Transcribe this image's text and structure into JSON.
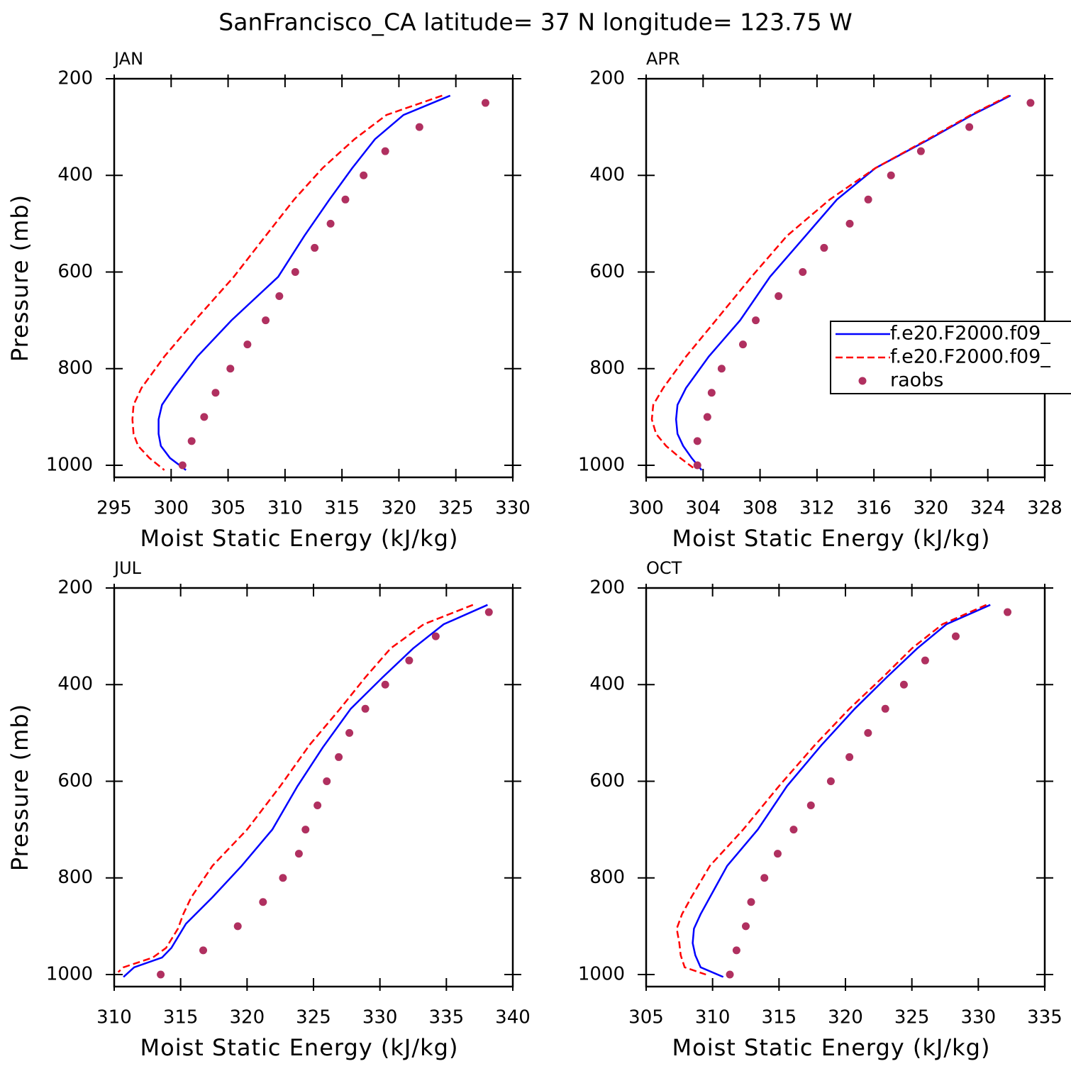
{
  "title": "SanFrancisco_CA  latitude= 37 N longitude= 123.75 W",
  "chart_data": [
    {
      "type": "line",
      "label": "JAN",
      "xlabel": "Moist Static Energy (kJ/kg)",
      "ylabel": "Pressure (mb)",
      "xlim": [
        295,
        330
      ],
      "xticks": [
        295,
        300,
        305,
        310,
        315,
        320,
        325,
        330
      ],
      "ylim": [
        1025,
        200
      ],
      "yticks": [
        200,
        400,
        600,
        800,
        1000
      ],
      "series": [
        {
          "name": "f.e20.F2000.f09_",
          "color": "#0000ff",
          "line_style": "solid",
          "x": [
            324.5,
            320.4,
            317.9,
            315.9,
            313.9,
            311.7,
            309.4,
            305.3,
            302.3,
            300.2,
            299.2,
            298.9,
            298.9,
            299.1,
            299.9,
            301.3
          ],
          "y": [
            235,
            275,
            325,
            385,
            450,
            525,
            610,
            700,
            775,
            840,
            875,
            905,
            935,
            960,
            985,
            1010
          ]
        },
        {
          "name": "f.e20.F2000.f09_",
          "color": "#ff0000",
          "line_style": "dashed",
          "x": [
            323.8,
            318.9,
            316.1,
            313.3,
            310.8,
            308.3,
            305.5,
            302.1,
            299.4,
            297.4,
            296.7,
            296.6,
            296.7,
            297.1,
            298.1,
            299.4
          ],
          "y": [
            235,
            275,
            325,
            385,
            450,
            525,
            610,
            700,
            775,
            840,
            875,
            905,
            935,
            960,
            985,
            1010
          ]
        },
        {
          "name": "raobs",
          "color": "#b03060",
          "line_style": "none",
          "x": [
            327.6,
            321.8,
            318.8,
            316.9,
            315.3,
            314.0,
            312.6,
            310.9,
            309.5,
            308.3,
            306.7,
            305.2,
            303.9,
            302.9,
            301.8,
            301.0
          ],
          "y": [
            250,
            300,
            350,
            400,
            450,
            500,
            550,
            600,
            650,
            700,
            750,
            800,
            850,
            900,
            950,
            1000
          ]
        }
      ]
    },
    {
      "type": "line",
      "label": "APR",
      "xlabel": "Moist Static Energy (kJ/kg)",
      "legend": "right",
      "xlim": [
        300,
        328
      ],
      "xticks": [
        300,
        304,
        308,
        312,
        316,
        320,
        324,
        328
      ],
      "ylim": [
        1025,
        200
      ],
      "yticks": [
        200,
        400,
        600,
        800,
        1000
      ],
      "series": [
        {
          "name": "f.e20.F2000.f09_",
          "color": "#0000ff",
          "line_style": "solid",
          "x": [
            325.6,
            322.9,
            319.9,
            316.1,
            313.4,
            311.2,
            308.7,
            306.6,
            304.4,
            302.8,
            302.2,
            302.1,
            302.2,
            302.6,
            303.2,
            303.9
          ],
          "y": [
            235,
            275,
            325,
            385,
            450,
            525,
            610,
            700,
            775,
            840,
            875,
            905,
            935,
            960,
            985,
            1010
          ]
        },
        {
          "name": "f.e20.F2000.f09_",
          "color": "#ff0000",
          "line_style": "dashed",
          "x": [
            325.5,
            322.8,
            319.8,
            316.1,
            312.9,
            309.9,
            307.4,
            304.9,
            302.8,
            301.2,
            300.5,
            300.4,
            300.7,
            301.4,
            302.4,
            303.3
          ],
          "y": [
            235,
            275,
            325,
            385,
            450,
            525,
            610,
            700,
            775,
            840,
            875,
            905,
            935,
            960,
            985,
            1005
          ]
        },
        {
          "name": "raobs",
          "color": "#b03060",
          "line_style": "none",
          "x": [
            327.0,
            322.7,
            319.3,
            317.2,
            315.6,
            314.3,
            312.5,
            311.0,
            309.3,
            307.7,
            306.8,
            305.3,
            304.6,
            304.3,
            303.6,
            303.6
          ],
          "y": [
            250,
            300,
            350,
            400,
            450,
            500,
            550,
            600,
            650,
            700,
            750,
            800,
            850,
            900,
            950,
            1000
          ]
        }
      ]
    },
    {
      "type": "line",
      "label": "JUL",
      "xlabel": "Moist Static Energy (kJ/kg)",
      "ylabel": "Pressure (mb)",
      "xlim": [
        310,
        340
      ],
      "xticks": [
        310,
        315,
        320,
        325,
        330,
        335,
        340
      ],
      "ylim": [
        1025,
        200
      ],
      "yticks": [
        200,
        400,
        600,
        800,
        1000
      ],
      "series": [
        {
          "name": "f.e20.F2000.f09_",
          "color": "#0000ff",
          "line_style": "solid",
          "x": [
            338.1,
            334.8,
            332.5,
            330.2,
            327.8,
            325.7,
            323.8,
            321.9,
            319.6,
            317.4,
            315.4,
            314.3,
            313.6,
            311.5,
            310.7
          ],
          "y": [
            235,
            275,
            325,
            385,
            450,
            530,
            610,
            700,
            775,
            840,
            895,
            945,
            965,
            985,
            1005
          ]
        },
        {
          "name": "f.e20.F2000.f09_",
          "color": "#ff0000",
          "line_style": "dashed",
          "x": [
            337.0,
            333.3,
            330.8,
            328.9,
            327.0,
            324.7,
            322.5,
            320.0,
            317.4,
            315.8,
            315.2,
            314.8,
            313.9,
            312.9,
            310.7,
            310.3
          ],
          "y": [
            235,
            275,
            325,
            385,
            450,
            525,
            610,
            700,
            775,
            840,
            875,
            905,
            945,
            965,
            985,
            995
          ]
        },
        {
          "name": "raobs",
          "color": "#b03060",
          "line_style": "none",
          "x": [
            338.2,
            334.2,
            332.2,
            330.4,
            328.9,
            327.7,
            326.9,
            326.0,
            325.3,
            324.4,
            323.9,
            322.7,
            321.2,
            319.3,
            316.7,
            313.5
          ],
          "y": [
            250,
            300,
            350,
            400,
            450,
            500,
            550,
            600,
            650,
            700,
            750,
            800,
            850,
            900,
            950,
            1000
          ]
        }
      ]
    },
    {
      "type": "line",
      "label": "OCT",
      "xlabel": "Moist Static Energy (kJ/kg)",
      "xlim": [
        305,
        335
      ],
      "xticks": [
        305,
        310,
        315,
        320,
        325,
        330,
        335
      ],
      "ylim": [
        1025,
        200
      ],
      "yticks": [
        200,
        400,
        600,
        800,
        1000
      ],
      "series": [
        {
          "name": "f.e20.F2000.f09_",
          "color": "#0000ff",
          "line_style": "solid",
          "x": [
            330.9,
            327.6,
            325.4,
            323.1,
            320.7,
            318.2,
            315.6,
            313.4,
            311.1,
            309.8,
            309.1,
            308.6,
            308.5,
            308.7,
            309.1,
            310.8
          ],
          "y": [
            235,
            275,
            325,
            385,
            450,
            525,
            610,
            700,
            775,
            840,
            875,
            905,
            935,
            960,
            985,
            1005
          ]
        },
        {
          "name": "f.e20.F2000.f09_",
          "color": "#ff0000",
          "line_style": "dashed",
          "x": [
            330.6,
            327.3,
            325.0,
            322.8,
            320.3,
            317.7,
            315.0,
            312.3,
            309.8,
            308.4,
            307.7,
            307.3,
            307.5,
            307.6,
            307.9,
            309.5
          ],
          "y": [
            235,
            275,
            325,
            385,
            450,
            525,
            610,
            700,
            775,
            840,
            875,
            905,
            935,
            960,
            985,
            1000
          ]
        },
        {
          "name": "raobs",
          "color": "#b03060",
          "line_style": "none",
          "x": [
            332.2,
            328.3,
            326.0,
            324.4,
            323.0,
            321.7,
            320.3,
            318.9,
            317.4,
            316.1,
            314.9,
            313.9,
            312.9,
            312.5,
            311.8,
            311.3
          ],
          "y": [
            250,
            300,
            350,
            400,
            450,
            500,
            550,
            600,
            650,
            700,
            750,
            800,
            850,
            900,
            950,
            1000
          ]
        }
      ]
    }
  ]
}
